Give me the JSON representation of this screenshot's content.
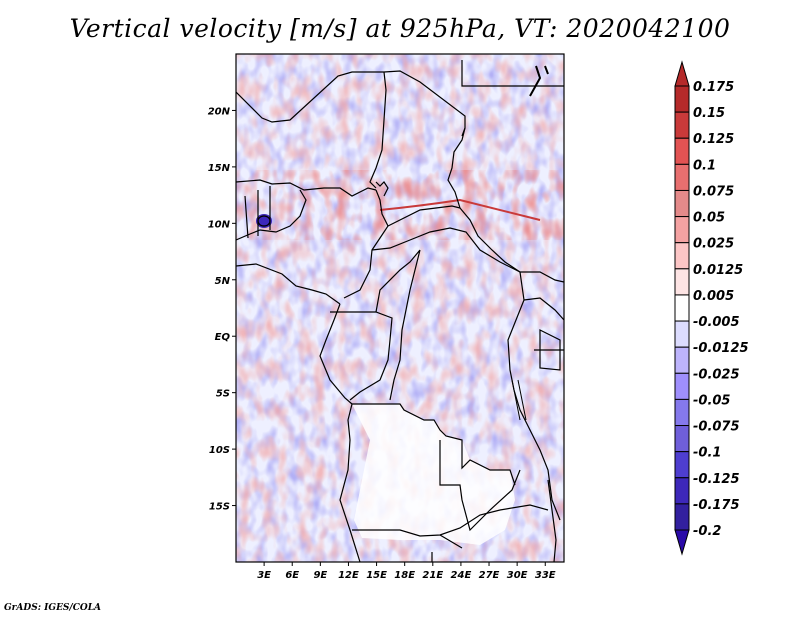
{
  "title": "Vertical velocity [m/s] at 925hPa, VT: 2020042100",
  "footer": "GrADS: IGES/COLA",
  "map": {
    "variable": "Vertical velocity",
    "units": "m/s",
    "level": "925hPa",
    "valid_time": "2020042100",
    "lon_range": [
      0,
      35
    ],
    "lat_range": [
      -20,
      25
    ],
    "x_ticks": [
      "3E",
      "6E",
      "9E",
      "12E",
      "15E",
      "18E",
      "21E",
      "24E",
      "27E",
      "30E",
      "33E"
    ],
    "x_tick_values": [
      3,
      6,
      9,
      12,
      15,
      18,
      21,
      24,
      27,
      30,
      33
    ],
    "y_ticks": [
      "20N",
      "15N",
      "10N",
      "5N",
      "EQ",
      "5S",
      "10S",
      "15S"
    ],
    "y_tick_values": [
      20,
      15,
      10,
      5,
      0,
      -5,
      -10,
      -15
    ]
  },
  "colorbar": {
    "labels": [
      "0.175",
      "0.15",
      "0.125",
      "0.1",
      "0.075",
      "0.05",
      "0.025",
      "0.0125",
      "0.005",
      "-0.005",
      "-0.0125",
      "-0.025",
      "-0.05",
      "-0.075",
      "-0.1",
      "-0.125",
      "-0.175",
      "-0.2"
    ],
    "colors": [
      "#b52a2a",
      "#c93a3a",
      "#e25353",
      "#e86f6f",
      "#e48a8a",
      "#f4a2a2",
      "#fcc6c6",
      "#fde4e4",
      "#ffffff",
      "#dcdcfe",
      "#bdb4fc",
      "#9f8ffd",
      "#8579ec",
      "#6f5fda",
      "#4e3ed0",
      "#3d28ba",
      "#32209f"
    ],
    "top_arrow_color": "#b52a2a",
    "bottom_arrow_color": "#2a0aa8"
  }
}
